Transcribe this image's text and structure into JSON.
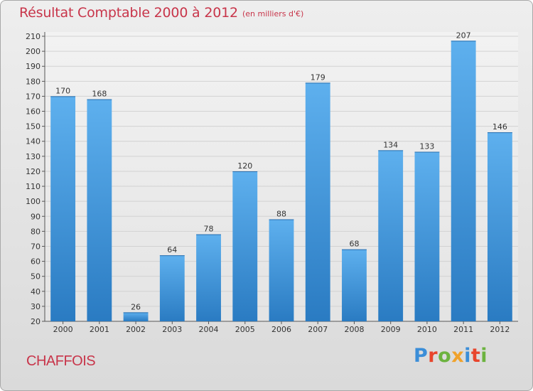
{
  "header": {
    "title": "Résultat Comptable 2000 à 2012",
    "subtitle": "(en milliers d'€)"
  },
  "footer": {
    "commune": "CHAFFOIS",
    "logo_text": "Proxiti"
  },
  "colors": {
    "bar": "#3d93dd",
    "bar_light": "#5eb0ee",
    "title": "#c8354a",
    "grid": "#d2d2d2"
  },
  "chart_data": {
    "type": "bar",
    "title": "Résultat Comptable 2000 à 2012",
    "subtitle": "(en milliers d'€)",
    "xlabel": "",
    "ylabel": "",
    "categories": [
      "2000",
      "2001",
      "2002",
      "2003",
      "2004",
      "2005",
      "2006",
      "2007",
      "2008",
      "2009",
      "2010",
      "2011",
      "2012"
    ],
    "values": [
      170,
      168,
      26,
      64,
      78,
      120,
      88,
      179,
      68,
      134,
      133,
      207,
      146
    ],
    "ylim": [
      20,
      210
    ],
    "yticks": [
      20,
      30,
      40,
      50,
      60,
      70,
      80,
      90,
      100,
      110,
      120,
      130,
      140,
      150,
      160,
      170,
      180,
      190,
      200,
      210
    ],
    "grid": true,
    "legend": "none",
    "data_labels": true
  }
}
